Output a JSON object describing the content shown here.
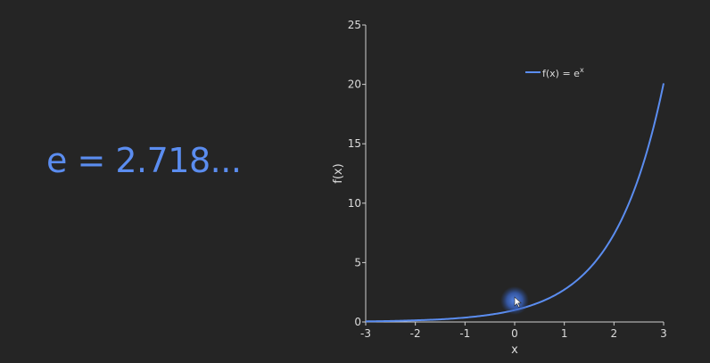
{
  "headline": "e = 2.718...",
  "chart_data": {
    "type": "line",
    "title": "",
    "xlabel": "x",
    "ylabel": "f(x)",
    "xlim": [
      -3,
      3
    ],
    "ylim": [
      0,
      25
    ],
    "xticks": [
      -3,
      -2,
      -1,
      0,
      1,
      2,
      3
    ],
    "yticks": [
      0,
      5,
      10,
      15,
      20,
      25
    ],
    "grid": false,
    "legend_position": "top-right",
    "series": [
      {
        "name": "f(x) = e",
        "name_superscript": "x",
        "color": "#5b8df0",
        "x": [
          -3,
          -2.5,
          -2,
          -1.5,
          -1,
          -0.5,
          0,
          0.5,
          1,
          1.5,
          2,
          2.25,
          2.5,
          2.75,
          3
        ],
        "y": [
          0.05,
          0.08,
          0.14,
          0.22,
          0.37,
          0.61,
          1.0,
          1.65,
          2.72,
          4.48,
          7.39,
          9.49,
          12.18,
          15.64,
          20.09
        ]
      }
    ],
    "cursor_highlight": {
      "x": 0,
      "y": 1.8,
      "color": "#5b8df0"
    }
  }
}
